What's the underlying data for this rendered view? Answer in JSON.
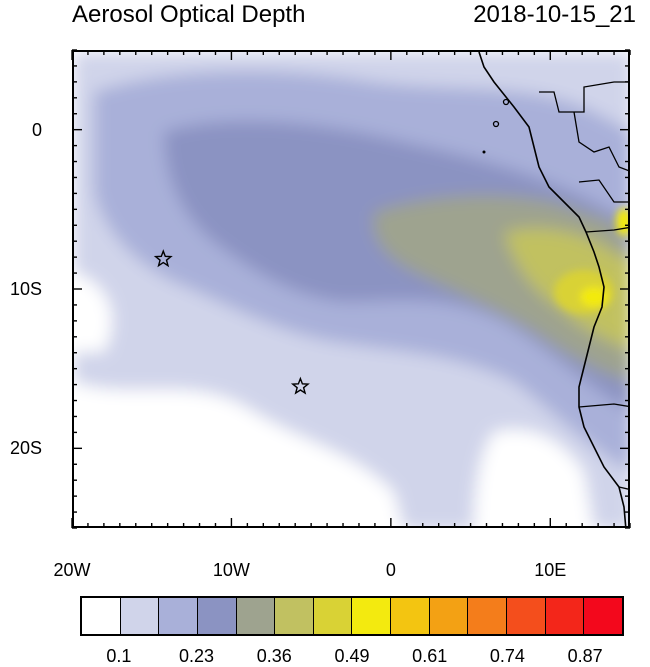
{
  "header": {
    "title": "Aerosol Optical Depth",
    "timestamp": "2018-10-15_21"
  },
  "map": {
    "lon_range": [
      -20,
      15
    ],
    "lat_range": [
      -25,
      5
    ],
    "x_ticks": [
      {
        "lon": -20,
        "label": "20W"
      },
      {
        "lon": -10,
        "label": "10W"
      },
      {
        "lon": 0,
        "label": "0"
      },
      {
        "lon": 10,
        "label": "10E"
      }
    ],
    "y_ticks": [
      {
        "lat": 0,
        "label": "0"
      },
      {
        "lat": -10,
        "label": "10S"
      },
      {
        "lat": -20,
        "label": "20S"
      }
    ],
    "markers": [
      {
        "name": "star-marker",
        "lon": -14.4,
        "lat": -8.0
      },
      {
        "name": "star-marker",
        "lon": -5.8,
        "lat": -16.0
      }
    ]
  },
  "colorbar": {
    "colors": [
      "#ffffff",
      "#d0d4ea",
      "#a9b0d9",
      "#8b93c2",
      "#9ea38f",
      "#c1c161",
      "#d9d235",
      "#f3ea0f",
      "#f3c511",
      "#f3a114",
      "#f47d1b",
      "#f44e1c",
      "#f3261a",
      "#f3081c"
    ],
    "labels": [
      "0.1",
      "0.23",
      "0.36",
      "0.49",
      "0.61",
      "0.74",
      "0.87"
    ]
  }
}
